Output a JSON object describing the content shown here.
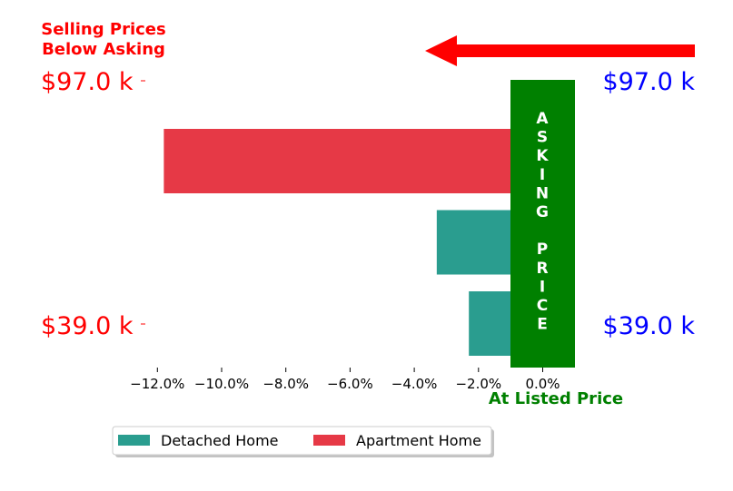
{
  "colors": {
    "detached": "#2a9d8f",
    "apartment": "#e63946",
    "asking_band": "#008000",
    "left_labels": "#ff0000",
    "right_labels": "#0000ff",
    "arrow": "#ff0000",
    "footer_text": "#008000"
  },
  "annotations": {
    "header_line1": "Selling Prices",
    "header_line2": "Below Asking",
    "asking_price_label": "ASKING PRICE",
    "footer_label": "At Listed Price"
  },
  "price_labels": {
    "top_left": "$97.0 k",
    "top_right": "$97.0 k",
    "bottom_left": "$39.0 k",
    "bottom_right": "$39.0 k"
  },
  "chart_data": {
    "type": "bar",
    "orientation": "horizontal",
    "xlim": [
      -13.0,
      1.0
    ],
    "x_ticks": [
      -12,
      -10,
      -8,
      -6,
      -4,
      -2,
      0
    ],
    "x_tick_labels": [
      "−12.0%",
      "−10.0%",
      "−8.0%",
      "−6.0%",
      "−4.0%",
      "−2.0%",
      "0.0%"
    ],
    "bars": [
      {
        "series": "Apartment Home",
        "value": -11.8,
        "rank": 0
      },
      {
        "series": "Detached Home",
        "value": -3.3,
        "rank": 1
      },
      {
        "series": "Detached Home",
        "value": -2.3,
        "rank": 2
      }
    ],
    "legend": {
      "position": "bottom-left",
      "entries": [
        {
          "name": "Detached Home",
          "color": "#2a9d8f"
        },
        {
          "name": "Apartment Home",
          "color": "#e63946"
        }
      ]
    },
    "grid": false
  }
}
